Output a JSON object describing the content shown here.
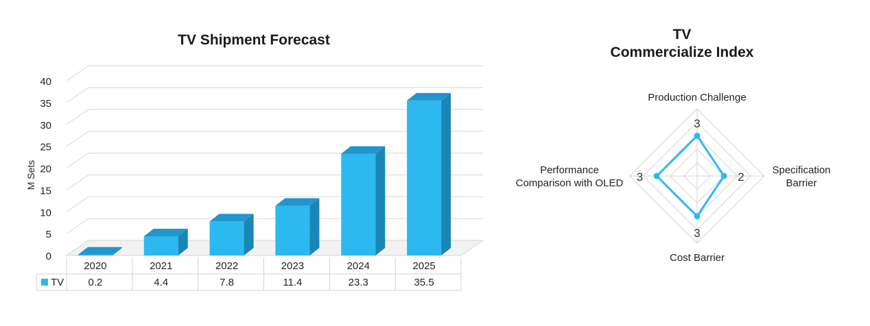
{
  "charts": [
    {
      "type": "bar",
      "title": "TV Shipment Forecast",
      "ylabel": "M Sets",
      "xlabel": "",
      "ylim": [
        0,
        40
      ],
      "yticks": [
        0,
        5,
        10,
        15,
        20,
        25,
        30,
        35,
        40
      ],
      "categories": [
        "2020",
        "2021",
        "2022",
        "2023",
        "2024",
        "2025"
      ],
      "series": [
        {
          "name": "TV",
          "values": [
            0.2,
            4.4,
            7.8,
            11.4,
            23.3,
            35.5
          ],
          "color": "#2EB8F0"
        }
      ],
      "grid": true,
      "data_table": true
    },
    {
      "type": "radar",
      "title_lines": [
        "TV",
        "Commercialize Index"
      ],
      "axes": [
        "Production Challenge",
        "Specification Barrier",
        "Cost Barrier",
        "Performance Comparison with OLED"
      ],
      "axis_label_lines": [
        [
          "Production Challenge"
        ],
        [
          "Specification",
          "Barrier"
        ],
        [
          "Cost Barrier"
        ],
        [
          "Performance",
          "Comparison with OLED"
        ]
      ],
      "values": [
        3,
        2,
        3,
        3
      ],
      "range": [
        0,
        5
      ],
      "grid": true,
      "color": "#2EB8F0"
    }
  ]
}
